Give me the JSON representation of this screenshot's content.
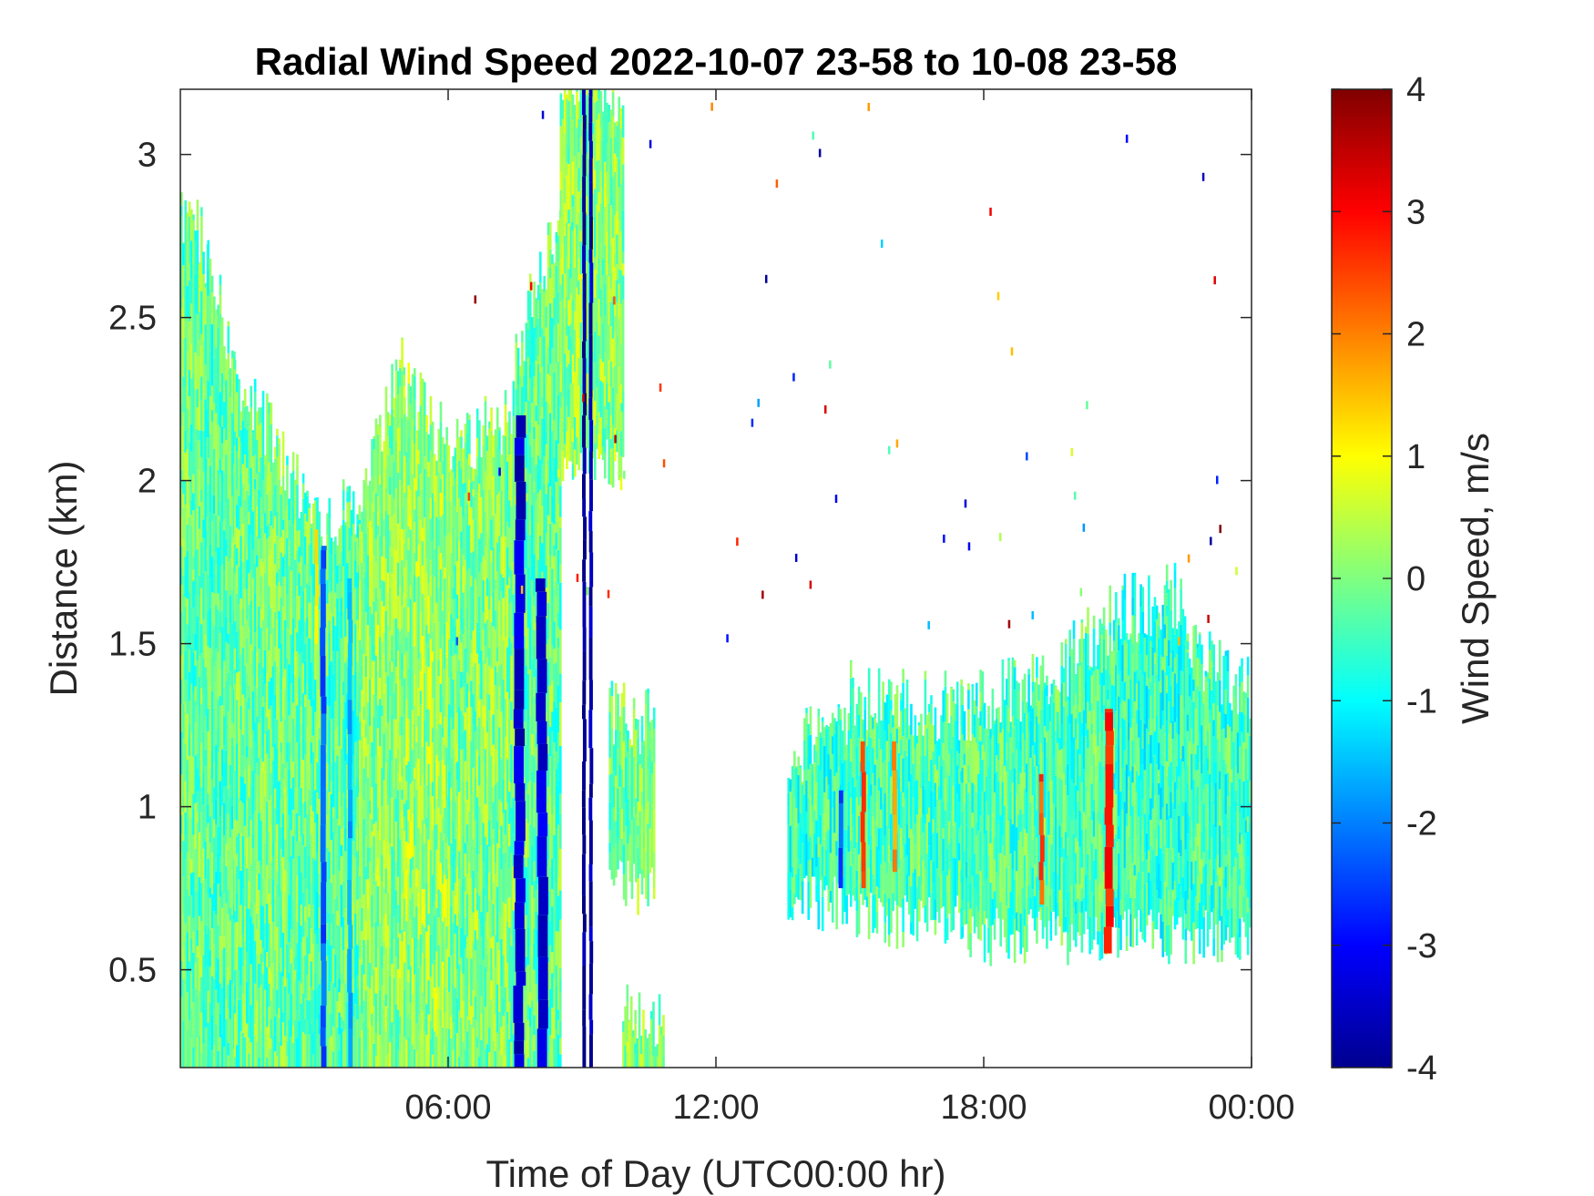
{
  "chart_data": {
    "type": "heatmap",
    "title": "Radial Wind Speed 2022-10-07 23-58 to 10-08 23-58",
    "xlabel": "Time of Day (UTC00:00 hr)",
    "ylabel": "Distance (km)",
    "colorbar_label": "Wind Speed, m/s",
    "x_unit": "hours",
    "xlim": [
      0,
      24
    ],
    "ylim": [
      0.2,
      3.2
    ],
    "x_ticks": [
      {
        "value": 6,
        "label": "06:00"
      },
      {
        "value": 12,
        "label": "12:00"
      },
      {
        "value": 18,
        "label": "18:00"
      },
      {
        "value": 24,
        "label": "00:00"
      }
    ],
    "y_ticks": [
      {
        "value": 0.5,
        "label": "0.5"
      },
      {
        "value": 1,
        "label": "1"
      },
      {
        "value": 1.5,
        "label": "1.5"
      },
      {
        "value": 2,
        "label": "2"
      },
      {
        "value": 2.5,
        "label": "2.5"
      },
      {
        "value": 3,
        "label": "3"
      }
    ],
    "colorbar": {
      "colormap": "jet",
      "range": [
        -4,
        4
      ],
      "ticks": [
        {
          "value": 4,
          "label": "4"
        },
        {
          "value": 3,
          "label": "3"
        },
        {
          "value": 2,
          "label": "2"
        },
        {
          "value": 1,
          "label": "1"
        },
        {
          "value": 0,
          "label": "0"
        },
        {
          "value": -1,
          "label": "-1"
        },
        {
          "value": -2,
          "label": "-2"
        },
        {
          "value": -3,
          "label": "-3"
        },
        {
          "value": -4,
          "label": "-4"
        }
      ]
    },
    "regions": [
      {
        "t_start": 0.0,
        "t_end": 0.6,
        "top": [
          2.85,
          2.7
        ],
        "base_speed": -0.2
      },
      {
        "t_start": 0.6,
        "t_end": 1.2,
        "top": [
          2.7,
          2.35
        ],
        "base_speed": -0.3
      },
      {
        "t_start": 1.2,
        "t_end": 3.0,
        "top": [
          2.35,
          1.88
        ],
        "base_speed": -0.2
      },
      {
        "t_start": 3.0,
        "t_end": 4.0,
        "top": [
          1.88,
          1.92
        ],
        "base_speed": -0.3
      },
      {
        "t_start": 4.0,
        "t_end": 5.0,
        "top": [
          1.95,
          2.4
        ],
        "base_speed": 0.1
      },
      {
        "t_start": 5.0,
        "t_end": 6.0,
        "top": [
          2.3,
          2.1
        ],
        "base_speed": 0.2
      },
      {
        "t_start": 6.0,
        "t_end": 7.5,
        "top": [
          2.1,
          2.2
        ],
        "base_speed": 0.0
      },
      {
        "t_start": 7.5,
        "t_end": 8.5,
        "top": [
          2.4,
          2.8
        ],
        "base_speed": -0.2
      },
      {
        "t_start": 8.5,
        "t_end": 9.9,
        "top": [
          3.2,
          3.2
        ],
        "base_speed": 0.1,
        "bottom": 2.05
      },
      {
        "t_start": 9.6,
        "t_end": 10.6,
        "top": [
          1.3,
          1.25
        ],
        "base_speed": -0.1,
        "bottom": 0.75
      },
      {
        "t_start": 9.9,
        "t_end": 10.8,
        "top": [
          0.4,
          0.35
        ],
        "base_speed": 0.0
      },
      {
        "t_start": 13.6,
        "t_end": 15.0,
        "top": [
          1.15,
          1.3
        ],
        "base_speed": -0.5,
        "bottom": 0.7
      },
      {
        "t_start": 15.0,
        "t_end": 17.5,
        "top": [
          1.35,
          1.3
        ],
        "base_speed": -0.4,
        "bottom": 0.65
      },
      {
        "t_start": 17.5,
        "t_end": 19.5,
        "top": [
          1.3,
          1.4
        ],
        "base_speed": -0.4,
        "bottom": 0.6
      },
      {
        "t_start": 19.5,
        "t_end": 21.0,
        "top": [
          1.4,
          1.6
        ],
        "base_speed": -0.4,
        "bottom": 0.6
      },
      {
        "t_start": 21.0,
        "t_end": 22.5,
        "top": [
          1.6,
          1.65
        ],
        "base_speed": -0.6,
        "bottom": 0.6
      },
      {
        "t_start": 22.5,
        "t_end": 24.0,
        "top": [
          1.5,
          1.35
        ],
        "base_speed": -0.5,
        "bottom": 0.6
      }
    ],
    "streaks": [
      {
        "t": 3.2,
        "width_h": 0.12,
        "y0": 0.2,
        "y1": 1.8,
        "speed": -2.3
      },
      {
        "t": 3.8,
        "width_h": 0.1,
        "y0": 0.2,
        "y1": 1.7,
        "speed": -1.6
      },
      {
        "t": 3.05,
        "width_h": 0.08,
        "y0": 1.5,
        "y1": 1.85,
        "speed": 1.4
      },
      {
        "t": 7.6,
        "width_h": 0.22,
        "y0": 0.2,
        "y1": 2.2,
        "speed": -3.4
      },
      {
        "t": 8.1,
        "width_h": 0.22,
        "y0": 0.2,
        "y1": 1.7,
        "speed": -3.3
      },
      {
        "t": 9.05,
        "width_h": 0.08,
        "y0": 0.2,
        "y1": 3.2,
        "speed": -3.9
      },
      {
        "t": 9.2,
        "width_h": 0.08,
        "y0": 0.2,
        "y1": 3.2,
        "speed": -3.6
      },
      {
        "t": 15.3,
        "width_h": 0.1,
        "y0": 0.75,
        "y1": 1.2,
        "speed": 2.6
      },
      {
        "t": 16.0,
        "width_h": 0.1,
        "y0": 0.8,
        "y1": 1.2,
        "speed": 1.8
      },
      {
        "t": 19.3,
        "width_h": 0.1,
        "y0": 0.7,
        "y1": 1.1,
        "speed": 2.4
      },
      {
        "t": 20.8,
        "width_h": 0.18,
        "y0": 0.55,
        "y1": 1.3,
        "speed": 2.8
      },
      {
        "t": 14.8,
        "width_h": 0.1,
        "y0": 0.75,
        "y1": 1.05,
        "speed": -2.3
      }
    ],
    "colors": {
      "axis": "#262626",
      "background": "#ffffff"
    }
  }
}
